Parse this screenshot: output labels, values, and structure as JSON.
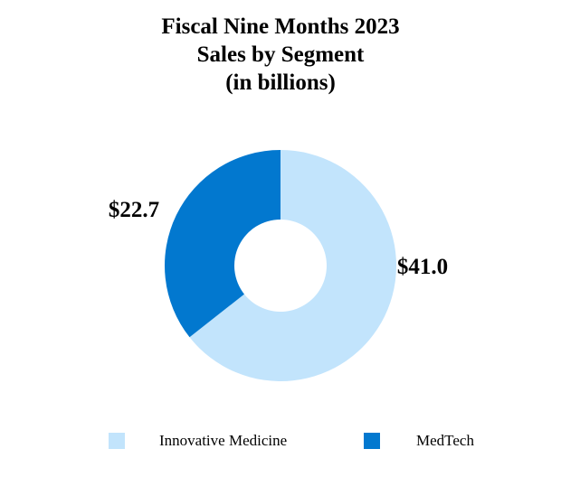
{
  "chart_data": {
    "type": "pie",
    "title_lines": [
      "Fiscal Nine Months 2023",
      "Sales by Segment",
      "(in billions)"
    ],
    "categories": [
      "Innovative Medicine",
      "MedTech"
    ],
    "values": [
      41.0,
      22.7
    ],
    "value_labels": [
      "$41.0",
      "$22.7"
    ],
    "colors": [
      "#c2e4fc",
      "#0278cf"
    ],
    "donut": true,
    "legend_position": "bottom"
  }
}
